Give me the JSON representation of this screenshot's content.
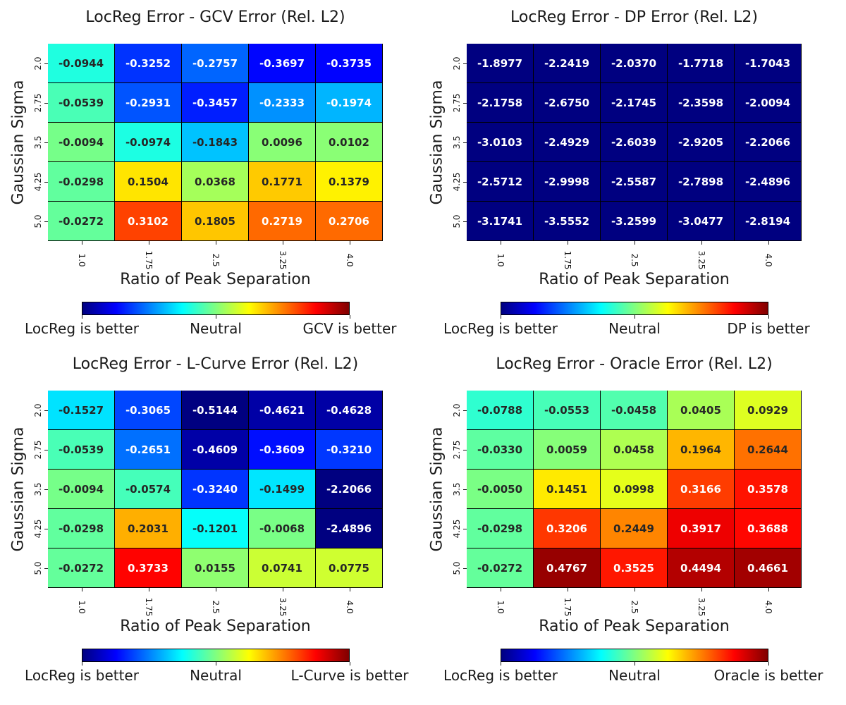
{
  "chart_data": [
    {
      "type": "heatmap",
      "title": "LocReg Error - GCV Error (Rel. L2)",
      "xlabel": "Ratio of Peak Separation",
      "ylabel": "Gaussian Sigma",
      "x_categories": [
        "1.0",
        "1.75",
        "2.5",
        "3.25",
        "4.0"
      ],
      "y_categories": [
        "2.0",
        "2.75",
        "3.5",
        "4.25",
        "5.0"
      ],
      "values": [
        [
          -0.0944,
          -0.3252,
          -0.2757,
          -0.3697,
          -0.3735
        ],
        [
          -0.0539,
          -0.2931,
          -0.3457,
          -0.2333,
          -0.1974
        ],
        [
          -0.0094,
          -0.0974,
          -0.1843,
          0.0096,
          0.0102
        ],
        [
          -0.0298,
          0.1504,
          0.0368,
          0.1771,
          0.1379
        ],
        [
          -0.0272,
          0.3102,
          0.1805,
          0.2719,
          0.2706
        ]
      ],
      "labels": [
        "-0.0944",
        "-0.3252",
        "-0.2757",
        "-0.3697",
        "-0.3735",
        "-0.0539",
        "-0.2931",
        "-0.3457",
        "-0.2333",
        "-0.1974",
        "-0.0094",
        "-0.0974",
        "-0.1843",
        "0.0096",
        "0.0102",
        "-0.0298",
        "0.1504",
        "0.0368",
        "0.1771",
        "0.1379",
        "-0.0272",
        "0.3102",
        "0.1805",
        "0.2719",
        "0.2706"
      ],
      "colorbar": {
        "colormap": "jet",
        "range": [
          -0.5,
          0.5
        ],
        "labels": [
          "LocReg is better",
          "Neutral",
          "GCV is better"
        ]
      }
    },
    {
      "type": "heatmap",
      "title": "LocReg Error - DP Error (Rel. L2)",
      "xlabel": "Ratio of Peak Separation",
      "ylabel": "Gaussian Sigma",
      "x_categories": [
        "1.0",
        "1.75",
        "2.5",
        "3.25",
        "4.0"
      ],
      "y_categories": [
        "2.0",
        "2.75",
        "3.5",
        "4.25",
        "5.0"
      ],
      "values": [
        [
          -1.8977,
          -2.2419,
          -2.037,
          -1.7718,
          -1.7043
        ],
        [
          -2.1758,
          -2.675,
          -2.1745,
          -2.3598,
          -2.0094
        ],
        [
          -3.0103,
          -2.4929,
          -2.6039,
          -2.9205,
          -2.2066
        ],
        [
          -2.5712,
          -2.9998,
          -2.5587,
          -2.7898,
          -2.4896
        ],
        [
          -3.1741,
          -3.5552,
          -3.2599,
          -3.0477,
          -2.8194
        ]
      ],
      "labels": [
        "-1.8977",
        "-2.2419",
        "-2.0370",
        "-1.7718",
        "-1.7043",
        "-2.1758",
        "-2.6750",
        "-2.1745",
        "-2.3598",
        "-2.0094",
        "-3.0103",
        "-2.4929",
        "-2.6039",
        "-2.9205",
        "-2.2066",
        "-2.5712",
        "-2.9998",
        "-2.5587",
        "-2.7898",
        "-2.4896",
        "-3.1741",
        "-3.5552",
        "-3.2599",
        "-3.0477",
        "-2.8194"
      ],
      "colorbar": {
        "colormap": "jet",
        "range": [
          -0.5,
          0.5
        ],
        "labels": [
          "LocReg is better",
          "Neutral",
          "DP is better"
        ]
      }
    },
    {
      "type": "heatmap",
      "title": "LocReg Error - L-Curve Error (Rel. L2)",
      "xlabel": "Ratio of Peak Separation",
      "ylabel": "Gaussian Sigma",
      "x_categories": [
        "1.0",
        "1.75",
        "2.5",
        "3.25",
        "4.0"
      ],
      "y_categories": [
        "2.0",
        "2.75",
        "3.5",
        "4.25",
        "5.0"
      ],
      "values": [
        [
          -0.1527,
          -0.3065,
          -0.5144,
          -0.4621,
          -0.4628
        ],
        [
          -0.0539,
          -0.2651,
          -0.4609,
          -0.3609,
          -0.321
        ],
        [
          -0.0094,
          -0.0574,
          -0.324,
          -0.1499,
          -2.2066
        ],
        [
          -0.0298,
          0.2031,
          -0.1201,
          -0.0068,
          -2.4896
        ],
        [
          -0.0272,
          0.3733,
          0.0155,
          0.0741,
          0.0775
        ]
      ],
      "labels": [
        "-0.1527",
        "-0.3065",
        "-0.5144",
        "-0.4621",
        "-0.4628",
        "-0.0539",
        "-0.2651",
        "-0.4609",
        "-0.3609",
        "-0.3210",
        "-0.0094",
        "-0.0574",
        "-0.3240",
        "-0.1499",
        "-2.2066",
        "-0.0298",
        "0.2031",
        "-0.1201",
        "-0.0068",
        "-2.4896",
        "-0.0272",
        "0.3733",
        "0.0155",
        "0.0741",
        "0.0775"
      ],
      "colorbar": {
        "colormap": "jet",
        "range": [
          -0.5,
          0.5
        ],
        "labels": [
          "LocReg is better",
          "Neutral",
          "L-Curve is better"
        ]
      }
    },
    {
      "type": "heatmap",
      "title": "LocReg Error - Oracle Error (Rel. L2)",
      "xlabel": "Ratio of Peak Separation",
      "ylabel": "Gaussian Sigma",
      "x_categories": [
        "1.0",
        "1.75",
        "2.5",
        "3.25",
        "4.0"
      ],
      "y_categories": [
        "2.0",
        "2.75",
        "3.5",
        "4.25",
        "5.0"
      ],
      "values": [
        [
          -0.0788,
          -0.0553,
          -0.0458,
          0.0405,
          0.0929
        ],
        [
          -0.033,
          0.0059,
          0.0458,
          0.1964,
          0.2644
        ],
        [
          -0.005,
          0.1451,
          0.0998,
          0.3166,
          0.3578
        ],
        [
          -0.0298,
          0.3206,
          0.2449,
          0.3917,
          0.3688
        ],
        [
          -0.0272,
          0.4767,
          0.3525,
          0.4494,
          0.4661
        ]
      ],
      "labels": [
        "-0.0788",
        "-0.0553",
        "-0.0458",
        "0.0405",
        "0.0929",
        "-0.0330",
        "0.0059",
        "0.0458",
        "0.1964",
        "0.2644",
        "-0.0050",
        "0.1451",
        "0.0998",
        "0.3166",
        "0.3578",
        "-0.0298",
        "0.3206",
        "0.2449",
        "0.3917",
        "0.3688",
        "-0.0272",
        "0.4767",
        "0.3525",
        "0.4494",
        "0.4661"
      ],
      "colorbar": {
        "colormap": "jet",
        "range": [
          -0.5,
          0.5
        ],
        "labels": [
          "LocReg is better",
          "Neutral",
          "Oracle is better"
        ]
      }
    }
  ]
}
